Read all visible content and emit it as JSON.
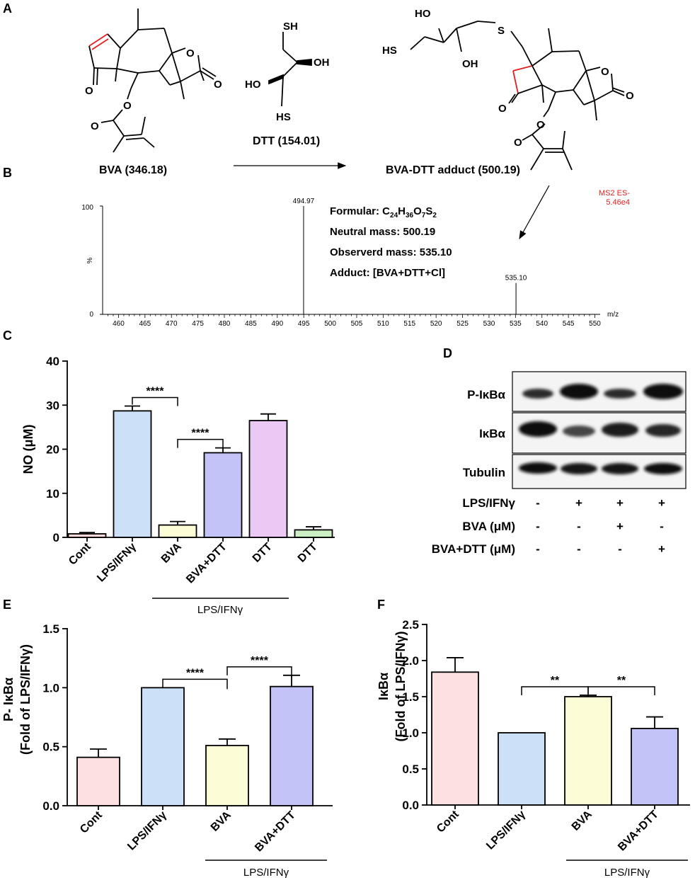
{
  "panels": {
    "a": {
      "letter": "A",
      "bva_label": "BVA (346.18)",
      "dtt_label": "DTT (154.01)",
      "adduct_label": "BVA-DTT adduct (500.19)",
      "atoms": {
        "o": "O",
        "oh": "OH",
        "ho": "HO",
        "sh": "SH",
        "hs": "HS",
        "s": "S"
      }
    },
    "b": {
      "letter": "B",
      "ms_note_1": "MS2 ES-",
      "ms_note_2": "5.46e4",
      "ylabel": "%",
      "y_top": "100",
      "y_zero": "0",
      "xunit": "m/z",
      "x_ticks": [
        "460",
        "465",
        "470",
        "475",
        "480",
        "485",
        "490",
        "495",
        "500",
        "505",
        "510",
        "515",
        "520",
        "525",
        "530",
        "535",
        "540",
        "545",
        "550"
      ],
      "formula_prefix": "Formular: C",
      "formula_c": "24",
      "formula_h_sym": "H",
      "formula_h": "36",
      "formula_o_sym": "O",
      "formula_o": "7",
      "formula_s_sym": "S",
      "formula_s": "2",
      "neutral_mass": "Neutral mass: 500.19",
      "observed_mass": "Observerd mass: 535.10",
      "adduct": "Adduct: [BVA+DTT+Cl]"
    },
    "c": {
      "letter": "C",
      "group_label": "LPS/IFNγ"
    },
    "d": {
      "letter": "D",
      "rows": [
        "P-IκBα",
        "IκBα",
        "Tubulin"
      ],
      "treatments": [
        {
          "label": "LPS/IFNγ",
          "signs": [
            "-",
            "+",
            "+",
            "+"
          ]
        },
        {
          "label": "BVA (μM)",
          "signs": [
            "-",
            "-",
            "+",
            "-"
          ]
        },
        {
          "label": "BVA+DTT (μM)",
          "signs": [
            "-",
            "-",
            "-",
            "+"
          ]
        }
      ]
    },
    "e": {
      "letter": "E",
      "group_label": "LPS/IFNγ"
    },
    "f": {
      "letter": "F",
      "group_label": "LPS/IFNγ"
    }
  },
  "chart_data": [
    {
      "id": "B",
      "type": "bar",
      "xlabel": "m/z",
      "ylabel": "%",
      "xlim": [
        457,
        551
      ],
      "ylim": [
        0,
        100
      ],
      "peaks": [
        {
          "x": 494.97,
          "y": 100,
          "label": "494.97"
        },
        {
          "x": 535.1,
          "y": 29,
          "label": "535.10"
        }
      ]
    },
    {
      "id": "C",
      "type": "bar",
      "categories": [
        "Cont",
        "LPS/IFNγ",
        "BVA",
        "BVA+DTT",
        "DTT",
        "DTT"
      ],
      "values": [
        0.8,
        28.7,
        2.8,
        19.2,
        26.5,
        1.7
      ],
      "errors": [
        0.3,
        1.1,
        0.8,
        1.1,
        1.5,
        0.7
      ],
      "colors": [
        "#ffd9dc",
        "#cce0f7",
        "#fcfcd6",
        "#c3c3f8",
        "#ecc9f5",
        "#cdefc4"
      ],
      "ylabel": "NO (μM)",
      "ylim": [
        0,
        40
      ],
      "yticks": [
        0,
        10,
        20,
        30,
        40
      ],
      "comparisons": [
        {
          "from": 1,
          "to": 2,
          "label": "****"
        },
        {
          "from": 2,
          "to": 3,
          "label": "****"
        }
      ]
    },
    {
      "id": "E",
      "type": "bar",
      "categories": [
        "Cont",
        "LPS/IFNγ",
        "BVA",
        "BVA+DTT"
      ],
      "values": [
        0.41,
        1.0,
        0.51,
        1.01
      ],
      "errors": [
        0.07,
        0.0,
        0.055,
        0.095
      ],
      "colors": [
        "#fde0e2",
        "#cce0f7",
        "#fcfcd6",
        "#c3c3f8"
      ],
      "ylabel_lines": [
        "P- IκBα",
        "(Fold of LPS/IFNγ)"
      ],
      "ylim": [
        0,
        1.5
      ],
      "yticks": [
        "0.0",
        "0.5",
        "1.0",
        "1.5"
      ],
      "comparisons": [
        {
          "from": 1,
          "to": 2,
          "label": "****"
        },
        {
          "from": 2,
          "to": 3,
          "label": "****"
        }
      ]
    },
    {
      "id": "F",
      "type": "bar",
      "categories": [
        "Cont",
        "LPS/IFNγ",
        "BVA",
        "BVA+DTT"
      ],
      "values": [
        1.84,
        1.0,
        1.5,
        1.06
      ],
      "errors": [
        0.2,
        0.0,
        0.02,
        0.16
      ],
      "colors": [
        "#fde0e2",
        "#cce0f7",
        "#fcfcd6",
        "#c3c3f8"
      ],
      "ylabel_lines": [
        "IκBα",
        "(Fold of LPS/IFNγ)"
      ],
      "ylim": [
        0,
        2.5
      ],
      "yticks": [
        "0.0",
        "0.5",
        "1.0",
        "1.5",
        "2.0",
        "2.5"
      ],
      "comparisons": [
        {
          "from": 1,
          "to": 2,
          "label": "**"
        },
        {
          "from": 2,
          "to": 3,
          "label": "**"
        }
      ]
    }
  ]
}
